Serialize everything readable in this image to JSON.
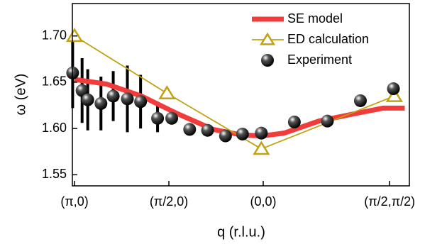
{
  "chart_data": {
    "type": "line",
    "xlabel": "q (r.l.u.)",
    "ylabel": "ω (eV)",
    "xlim": [
      -0.023,
      3.549
    ],
    "ylim": [
      1.538,
      1.735
    ],
    "xticks": [
      {
        "value": 0,
        "label": "(π,0)"
      },
      {
        "value": 1,
        "label": "(π/2,0)"
      },
      {
        "value": 2,
        "label": "(0,0)"
      },
      {
        "value": 3.34,
        "label": "(π/2,π/2)"
      }
    ],
    "yticks": [
      {
        "value": 1.55,
        "label": "1.55"
      },
      {
        "value": 1.6,
        "label": "1.60"
      },
      {
        "value": 1.65,
        "label": "1.65"
      },
      {
        "value": 1.7,
        "label": "1.70"
      }
    ],
    "legend": "upper right",
    "series": [
      {
        "name": "SE model",
        "style": "line",
        "color": "#f23b3b",
        "x": [
          0,
          0.34,
          0.71,
          1.09,
          1.47,
          1.77,
          1.99,
          2.22,
          2.59,
          2.97,
          3.27,
          3.5
        ],
        "values": [
          1.653,
          1.648,
          1.635,
          1.616,
          1.599,
          1.593,
          1.592,
          1.595,
          1.608,
          1.616,
          1.622,
          1.622
        ]
      },
      {
        "name": "ED calculation",
        "style": "line-marker",
        "color": "#c2a20f",
        "x": [
          0,
          0.98,
          1.98,
          3.39
        ],
        "values": [
          1.7,
          1.638,
          1.578,
          1.635
        ]
      },
      {
        "name": "Experiment",
        "style": "scatter",
        "color": "#000000",
        "x": [
          -0.02,
          0.08,
          0.14,
          0.28,
          0.41,
          0.56,
          0.7,
          0.88,
          1.03,
          1.22,
          1.41,
          1.6,
          1.78,
          1.98,
          2.33,
          2.68,
          3.03,
          3.38
        ],
        "values": [
          1.66,
          1.641,
          1.631,
          1.627,
          1.635,
          1.632,
          1.629,
          1.611,
          1.611,
          1.599,
          1.598,
          1.592,
          1.594,
          1.595,
          1.607,
          1.608,
          1.63,
          1.643
        ],
        "errors": [
          0.038,
          0.035,
          0.033,
          0.029,
          0.027,
          0.036,
          0.029,
          0.015,
          0,
          0,
          0,
          0,
          0,
          0,
          0,
          0,
          0,
          0
        ]
      }
    ]
  }
}
